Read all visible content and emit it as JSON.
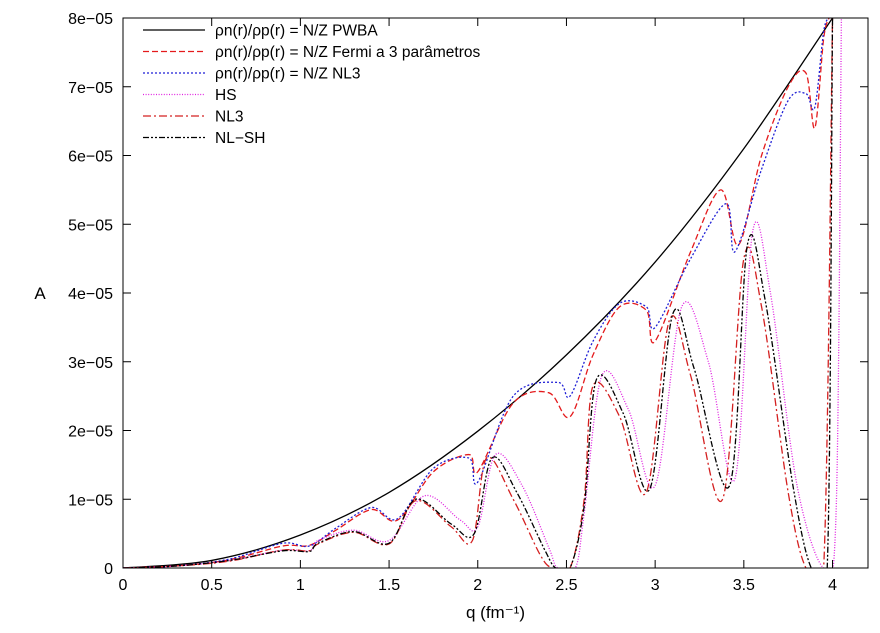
{
  "chart_data": {
    "type": "line",
    "xlabel": "q (fm⁻¹)",
    "ylabel": "A",
    "xlim": [
      0,
      4.2
    ],
    "ylim": [
      0,
      8e-05
    ],
    "x_ticks": [
      "0",
      "0.5",
      "1",
      "1.5",
      "2",
      "2.5",
      "3",
      "3.5",
      "4"
    ],
    "y_ticks": [
      "0",
      "1e−05",
      "2e−05",
      "3e−05",
      "4e−05",
      "5e−05",
      "6e−05",
      "7e−05",
      "8e−05"
    ],
    "legend_position": "top-left",
    "grid": false,
    "series": [
      {
        "name": "ρn(r)/ρp(r) = N/Z PWBA",
        "color": "#000000",
        "dash": "solid",
        "x": [
          0,
          0.5,
          1.0,
          1.5,
          2.0,
          2.5,
          3.0,
          3.5,
          4.0
        ],
        "y": [
          0,
          1.1e-06,
          4.8e-06,
          1.1e-05,
          1.99e-05,
          3.1e-05,
          4.45e-05,
          6.1e-05,
          8e-05
        ]
      },
      {
        "name": "ρn(r)/ρp(r) = N/Z Fermi a 3 parâmetros",
        "color": "#e41a1c",
        "dash": "dashed",
        "x": [
          0,
          0.3,
          0.6,
          0.9,
          1.05,
          1.2,
          1.4,
          1.55,
          1.75,
          1.95,
          2.0,
          2.2,
          2.4,
          2.52,
          2.65,
          2.8,
          2.95,
          3.0,
          3.2,
          3.37,
          3.47,
          3.6,
          3.75,
          3.85,
          3.9,
          3.95,
          3.98
        ],
        "y": [
          0,
          3e-07,
          1.2e-06,
          3.2e-06,
          3.3e-06,
          5.5e-06,
          8.5e-06,
          7e-06,
          1.4e-05,
          1.65e-05,
          1.4e-05,
          2.4e-05,
          2.55e-05,
          2.2e-05,
          3.1e-05,
          3.8e-05,
          3.75e-05,
          3.3e-05,
          4.6e-05,
          5.5e-05,
          4.7e-05,
          6e-05,
          7e-05,
          7.2e-05,
          6.4e-05,
          7.7e-05,
          8e-05
        ]
      },
      {
        "name": "ρn(r)/ρp(r) = N/Z NL3",
        "color": "#1f1fd6",
        "dash": "dotted",
        "x": [
          0,
          0.3,
          0.6,
          0.9,
          1.05,
          1.2,
          1.4,
          1.55,
          1.75,
          1.95,
          2.0,
          2.2,
          2.45,
          2.52,
          2.65,
          2.8,
          2.95,
          3.0,
          3.2,
          3.4,
          3.45,
          3.6,
          3.75,
          3.85,
          3.9,
          3.95,
          3.98
        ],
        "y": [
          0,
          3e-07,
          1.3e-06,
          3.6e-06,
          3.2e-06,
          5.8e-06,
          8.8e-06,
          7.2e-06,
          1.45e-05,
          1.6e-05,
          1.25e-05,
          2.5e-05,
          2.7e-05,
          2.5e-05,
          3.3e-05,
          3.85e-05,
          3.8e-05,
          3.5e-05,
          4.5e-05,
          5.3e-05,
          4.6e-05,
          5.8e-05,
          6.8e-05,
          6.9e-05,
          6.7e-05,
          7.8e-05,
          8e-05
        ]
      },
      {
        "name": "HS",
        "color": "#e020e0",
        "dash": "fine-dotted",
        "x": [
          0,
          0.3,
          0.6,
          0.9,
          1.05,
          1.1,
          1.3,
          1.5,
          1.7,
          1.9,
          2.0,
          2.1,
          2.25,
          2.4,
          2.45,
          2.55,
          2.6,
          2.7,
          2.85,
          3.0,
          3.15,
          3.3,
          3.45,
          3.55,
          3.65,
          3.8,
          3.95,
          4.02,
          4.05
        ],
        "y": [
          0,
          3e-07,
          1.1e-06,
          2.6e-06,
          2.5e-06,
          4e-06,
          5.5e-06,
          4e-06,
          1.05e-05,
          7e-06,
          6e-06,
          1.65e-05,
          1.2e-05,
          3e-06,
          0,
          0,
          8e-06,
          2.8e-05,
          2.3e-05,
          1.2e-05,
          3.8e-05,
          3e-05,
          1.3e-05,
          4.9e-05,
          4e-05,
          1.2e-05,
          0,
          8e-06,
          8e-05
        ]
      },
      {
        "name": "NL3",
        "color": "#d42020",
        "dash": "dash-dot",
        "x": [
          0,
          0.3,
          0.6,
          0.9,
          1.05,
          1.1,
          1.3,
          1.5,
          1.65,
          1.85,
          1.97,
          2.05,
          2.2,
          2.35,
          2.42,
          2.52,
          2.6,
          2.65,
          2.8,
          2.95,
          3.08,
          3.2,
          3.38,
          3.5,
          3.6,
          3.75,
          3.85,
          3.95,
          4.0
        ],
        "y": [
          0,
          3e-07,
          1e-06,
          2.6e-06,
          2.5e-06,
          3.5e-06,
          5.2e-06,
          3.5e-06,
          9.8e-06,
          6e-06,
          4e-06,
          1.6e-05,
          1e-05,
          2e-06,
          0,
          0,
          1e-05,
          2.65e-05,
          2.2e-05,
          1.1e-05,
          3.6e-05,
          2.8e-05,
          1e-05,
          4.5e-05,
          3.8e-05,
          1.1e-05,
          0,
          0,
          8e-05
        ]
      },
      {
        "name": "NL−SH",
        "color": "#000000",
        "dash": "dash-dot-dot",
        "x": [
          0,
          0.3,
          0.6,
          0.9,
          1.05,
          1.1,
          1.3,
          1.5,
          1.65,
          1.85,
          1.98,
          2.08,
          2.22,
          2.38,
          2.44,
          2.52,
          2.6,
          2.67,
          2.82,
          2.97,
          3.1,
          3.22,
          3.42,
          3.52,
          3.62,
          3.78,
          3.88,
          3.97,
          4.0
        ],
        "y": [
          0,
          3e-07,
          1.1e-06,
          2.5e-06,
          2.4e-06,
          3.6e-06,
          5.3e-06,
          3.6e-06,
          1e-05,
          6.4e-06,
          5e-06,
          1.6e-05,
          1.1e-05,
          2.5e-06,
          0,
          0,
          9e-06,
          2.75e-05,
          2.25e-05,
          1.15e-05,
          3.7e-05,
          2.9e-05,
          1.2e-05,
          4.7e-05,
          3.9e-05,
          1.15e-05,
          0,
          0,
          8e-05
        ]
      }
    ]
  }
}
